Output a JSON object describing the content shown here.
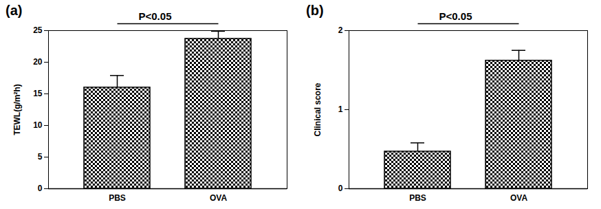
{
  "chart_data": [
    {
      "type": "bar",
      "title": "(a)",
      "categories": [
        "PBS",
        "OVA"
      ],
      "values": [
        16.0,
        23.7
      ],
      "errors": [
        1.9,
        1.2
      ],
      "color": "#000000",
      "ylabel": "TEWL(g/m²h)",
      "ylim": [
        0,
        25
      ],
      "yticks": [
        0,
        5,
        10,
        15,
        20,
        25
      ],
      "annotations": [
        {
          "text": "P<0.05",
          "from": "PBS",
          "to": "OVA"
        }
      ]
    },
    {
      "type": "bar",
      "title": "(b)",
      "categories": [
        "PBS",
        "OVA"
      ],
      "values": [
        0.47,
        1.62
      ],
      "errors": [
        0.11,
        0.13
      ],
      "color": "#000000",
      "ylabel": "Clinical score",
      "ylim": [
        0,
        2
      ],
      "yticks": [
        0,
        1,
        2
      ],
      "annotations": [
        {
          "text": "P<0.05",
          "from": "PBS",
          "to": "OVA"
        }
      ]
    }
  ]
}
